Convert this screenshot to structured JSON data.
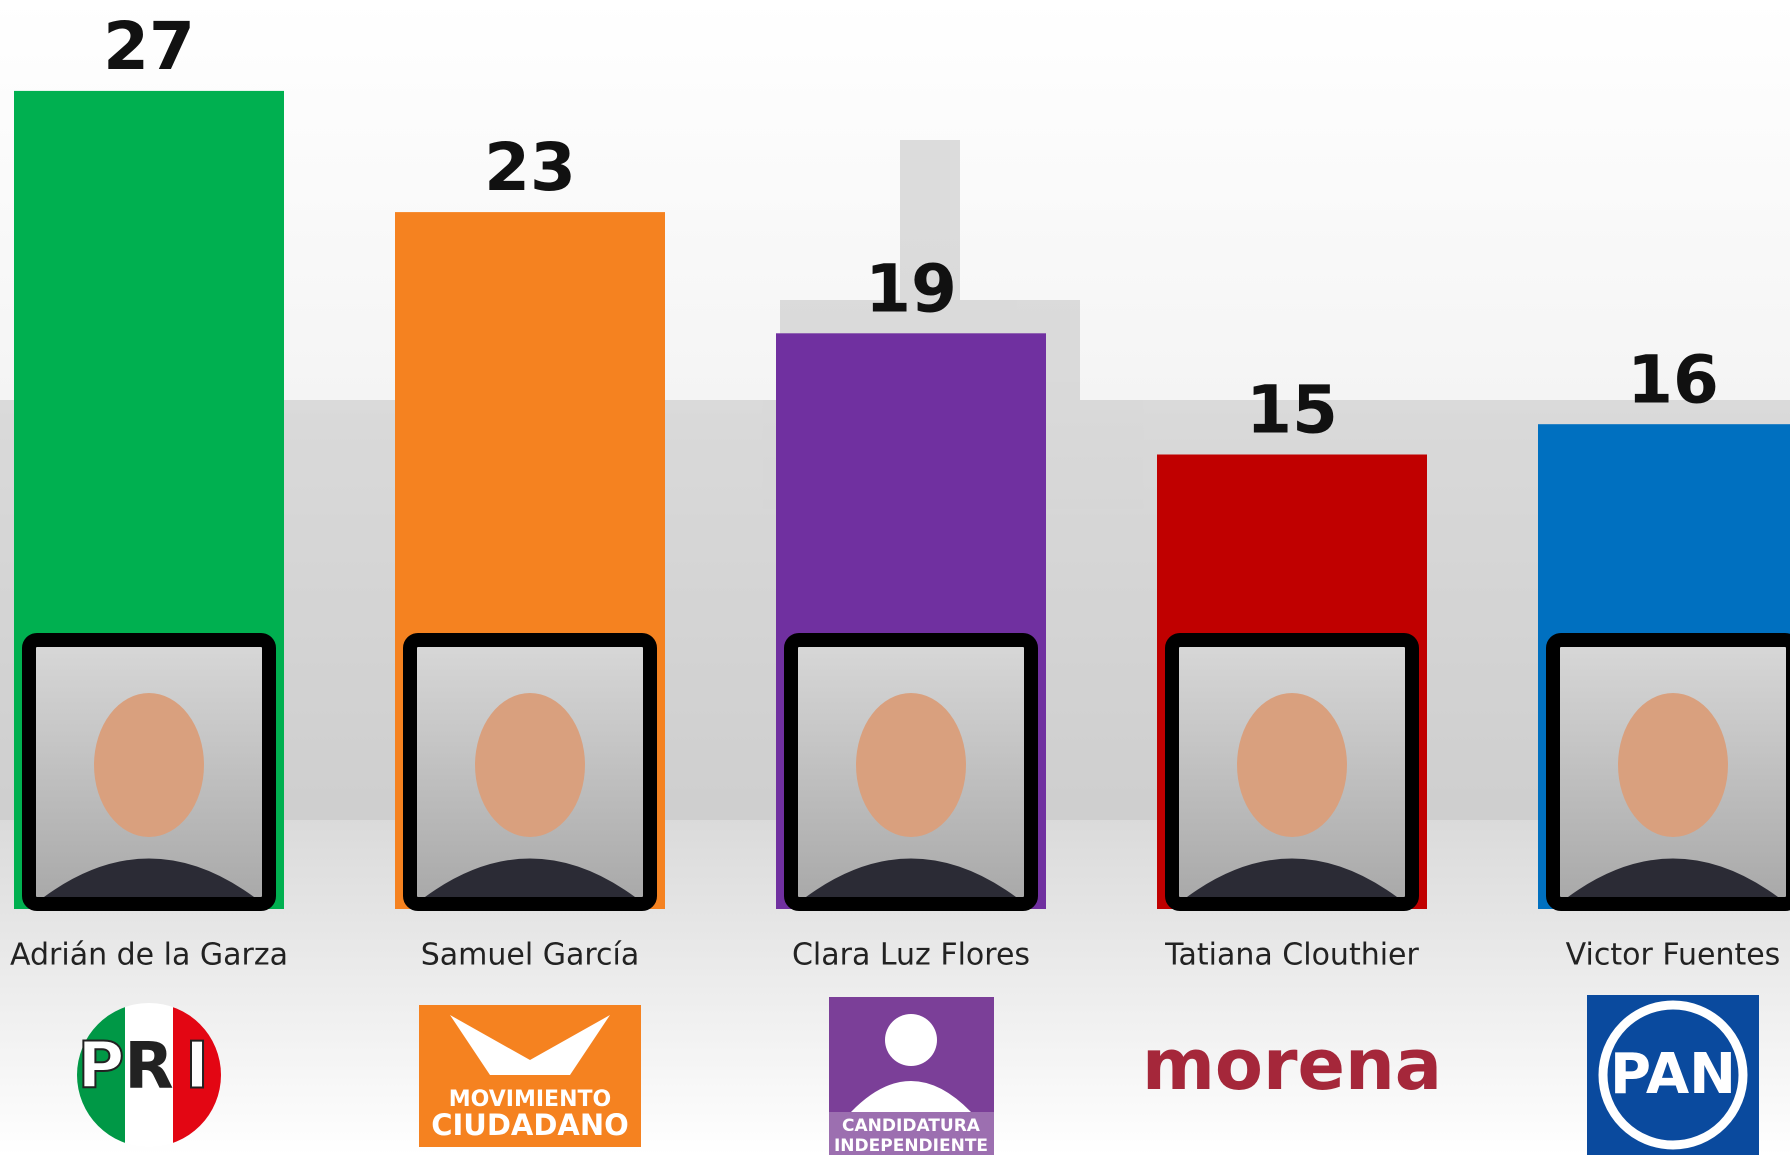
{
  "chart_data": {
    "type": "bar",
    "categories": [
      "Adrián de la Garza",
      "Samuel García",
      "Clara Luz Flores",
      "Tatiana Clouthier",
      "Victor Fuentes"
    ],
    "values": [
      27,
      23,
      19,
      15,
      16
    ],
    "colors": [
      "#00b050",
      "#f58220",
      "#7030a0",
      "#c00000",
      "#0070c0"
    ],
    "ylim": [
      0,
      30
    ],
    "logos": [
      [
        "P",
        "R",
        "I"
      ],
      [
        "MOVIMIENTO",
        "CIUDADANO"
      ],
      [
        "CANDIDATURA",
        "INDEPENDIENTE"
      ],
      [
        "morena"
      ],
      [
        "PAN"
      ]
    ]
  }
}
